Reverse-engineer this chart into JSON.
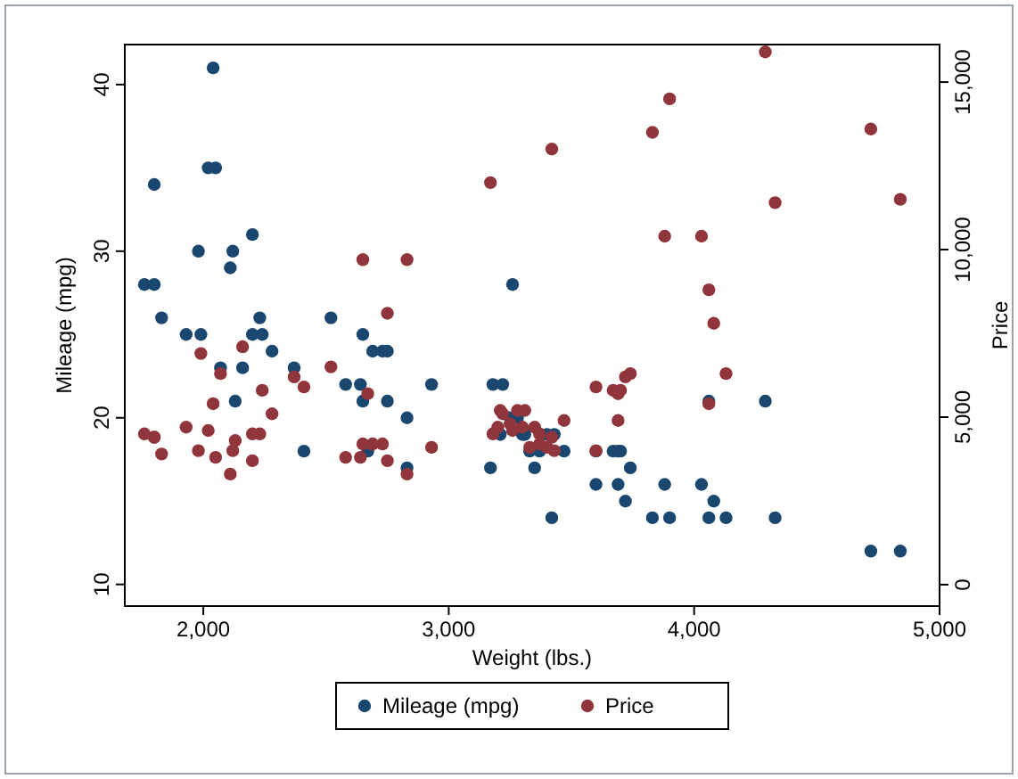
{
  "chart_data": {
    "type": "scatter",
    "xlabel": "Weight (lbs.)",
    "ylabel": "Mileage (mpg)",
    "y2label": "Price",
    "x": [
      2930,
      3350,
      2640,
      3250,
      4080,
      3670,
      2230,
      3280,
      3880,
      3400,
      4330,
      3900,
      4290,
      2110,
      3690,
      3180,
      3220,
      2750,
      3430,
      2120,
      3600,
      3600,
      3740,
      1800,
      2650,
      4840,
      4720,
      3830,
      2580,
      4060,
      3720,
      3370,
      4130,
      2830,
      4060,
      3310,
      3300,
      3690,
      3370,
      2730,
      4030,
      3260,
      1800,
      2200,
      2520,
      3330,
      3700,
      3470,
      3210,
      3200,
      3420,
      2690,
      2830,
      2070,
      2650,
      2370,
      2020,
      2280,
      2750,
      2130,
      2240,
      1760,
      1980,
      3420,
      1830,
      2050,
      2410,
      2200,
      2670,
      2160,
      2040,
      1930,
      1990,
      3170
    ],
    "series": [
      {
        "name": "Mileage (mpg)",
        "color": "#1a476f",
        "values": [
          22,
          17,
          22,
          20,
          15,
          18,
          26,
          20,
          16,
          19,
          14,
          14,
          21,
          29,
          16,
          22,
          22,
          24,
          19,
          30,
          18,
          16,
          17,
          28,
          21,
          12,
          12,
          14,
          22,
          14,
          15,
          18,
          14,
          20,
          21,
          19,
          19,
          18,
          null,
          24,
          16,
          28,
          34,
          25,
          26,
          18,
          18,
          18,
          19,
          null,
          null,
          24,
          17,
          23,
          25,
          23,
          35,
          24,
          21,
          21,
          25,
          28,
          30,
          14,
          26,
          35,
          18,
          31,
          18,
          23,
          41,
          25,
          25,
          17
        ]
      },
      {
        "name": "Price",
        "color": "#90353b",
        "axis": "y2",
        "values": [
          4100,
          4700,
          3800,
          4800,
          7800,
          5800,
          4500,
          5200,
          10400,
          4100,
          11400,
          14500,
          15900,
          3300,
          5700,
          4500,
          5100,
          3700,
          4000,
          4000,
          4000,
          5900,
          6300,
          4400,
          4200,
          11500,
          13600,
          13500,
          3800,
          5400,
          6200,
          4500,
          6300,
          3300,
          8800,
          5200,
          4700,
          4900,
          4200,
          4200,
          10400,
          4600,
          4400,
          4500,
          6500,
          4100,
          5800,
          4900,
          5200,
          4700,
          4400,
          4200,
          9700,
          6300,
          9700,
          6200,
          4600,
          5100,
          8100,
          4300,
          5800,
          4500,
          4000,
          13000,
          3900,
          3800,
          5900,
          3700,
          5700,
          7100,
          5400,
          4700,
          6900,
          12000
        ]
      }
    ],
    "xlim": [
      1680,
      5000
    ],
    "xticks": [
      {
        "value": 2000,
        "label": "2,000"
      },
      {
        "value": 3000,
        "label": "3,000"
      },
      {
        "value": 4000,
        "label": "4,000"
      },
      {
        "value": 5000,
        "label": "5,000"
      }
    ],
    "ylim": [
      8.7,
      42.4
    ],
    "yticks": [
      10,
      20,
      30,
      40
    ],
    "y2lim": [
      -640,
      16120
    ],
    "y2ticks": [
      0,
      {
        "value": 5000,
        "label": "5,000"
      },
      {
        "value": 10000,
        "label": "10,000"
      },
      {
        "value": 15000,
        "label": "15,000"
      }
    ],
    "marker": "circle",
    "grid": false,
    "legend": "bottom"
  }
}
